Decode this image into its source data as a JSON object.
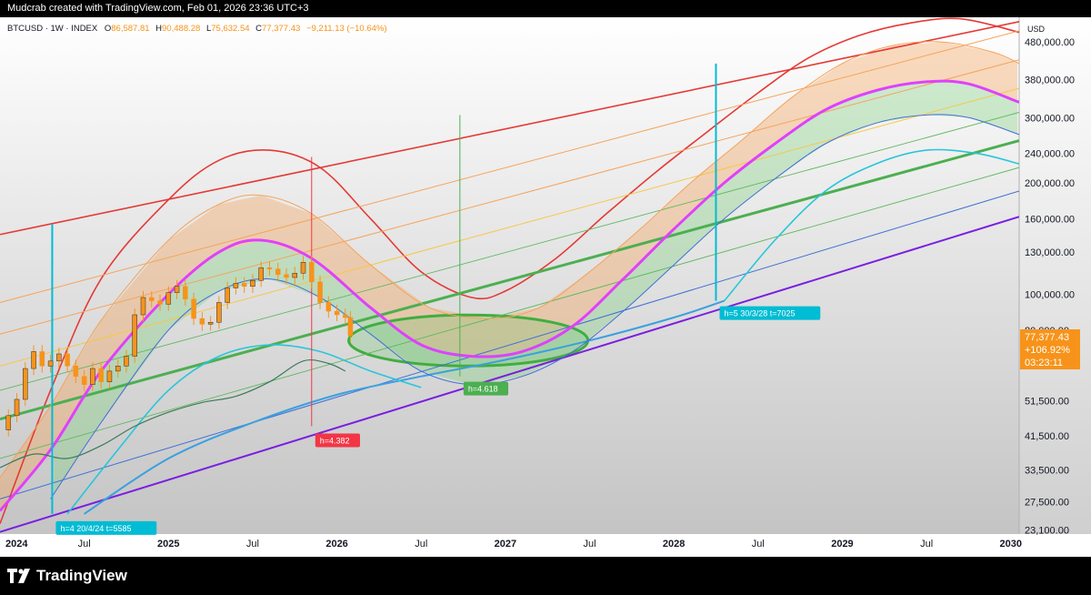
{
  "header": {
    "creator_line": "Mudcrab created with TradingView.com, Feb 01, 2026 23:36 UTC+3"
  },
  "legend": {
    "symbol": "BTCUSD · 1W · INDEX",
    "open_label": "O",
    "open": "86,587.81",
    "high_label": "H",
    "high": "90,488.28",
    "low_label": "L",
    "low": "75,632.54",
    "close_label": "C",
    "close": "77,377.43",
    "change": "−9,211.13 (−10.64%)"
  },
  "price_axis": {
    "currency": "USD",
    "ticks": [
      "480,000.00",
      "380,000.00",
      "300,000.00",
      "240,000.00",
      "200,000.00",
      "160,000.00",
      "130,000.00",
      "100,000.00",
      "80,000.00",
      "51,500.00",
      "41,500.00",
      "33,500.00",
      "27,500.00",
      "23,100.00"
    ]
  },
  "price_tag": {
    "price": "77,377.43",
    "change_pct": "+106.92%",
    "countdown": "03:23:11",
    "color": "#f7931a"
  },
  "time_axis": {
    "ticks": [
      "2024",
      "Jul",
      "2025",
      "Jul",
      "2026",
      "Jul",
      "2027",
      "Jul",
      "2028",
      "Jul",
      "2029",
      "Jul",
      "2030"
    ]
  },
  "annotations": [
    {
      "text": "h=4 20/4/24 t=5585",
      "color": "#00bcd4"
    },
    {
      "text": "h=4.382",
      "color": "#f23645"
    },
    {
      "text": "h=4.618",
      "color": "#4caf50"
    },
    {
      "text": "h=5 30/3/28 t=7025",
      "color": "#00bcd4"
    }
  ],
  "colors": {
    "red_curve": "#e53935",
    "orange_band": "#f5a35a",
    "magenta_curve": "#e040fb",
    "green_line": "#4caf50",
    "cyan_curve": "#26c6da",
    "blue_curve": "#3f6fd6",
    "purple_line": "#7b1fe0",
    "candle_up": "#f7931a",
    "grid_bg_top": "#ffffff",
    "grid_bg_bottom": "#c9c9c9"
  },
  "footer": {
    "brand": "TradingView",
    "logo_icon": "tradingview-logo-icon"
  },
  "chart_data": {
    "type": "line",
    "title": "",
    "xlabel": "",
    "ylabel": "USD",
    "scale": "log",
    "ylim": [
      22500,
      560000
    ],
    "xlim": [
      2024.0,
      2030.05
    ],
    "grid": false,
    "series": [
      {
        "key": "red_upper_line",
        "values": [
          [
            2024.0,
            145000
          ],
          [
            2030.05,
            545000
          ]
        ]
      },
      {
        "key": "red_wave",
        "values": [
          [
            2024.0,
            24000
          ],
          [
            2024.3,
            55000
          ],
          [
            2024.6,
            110000
          ],
          [
            2025.0,
            180000
          ],
          [
            2025.3,
            230000
          ],
          [
            2025.6,
            245000
          ],
          [
            2025.9,
            220000
          ],
          [
            2026.2,
            160000
          ],
          [
            2026.5,
            115000
          ],
          [
            2026.8,
            98000
          ],
          [
            2027.0,
            102000
          ],
          [
            2027.3,
            125000
          ],
          [
            2027.6,
            165000
          ],
          [
            2027.9,
            215000
          ],
          [
            2028.2,
            275000
          ],
          [
            2028.5,
            350000
          ],
          [
            2028.8,
            435000
          ],
          [
            2029.1,
            500000
          ],
          [
            2029.4,
            540000
          ],
          [
            2029.7,
            555000
          ],
          [
            2030.05,
            510000
          ]
        ]
      },
      {
        "key": "orange_line_1",
        "values": [
          [
            2024.0,
            95000
          ],
          [
            2030.05,
            515000
          ]
        ]
      },
      {
        "key": "orange_line_2",
        "values": [
          [
            2024.0,
            78000
          ],
          [
            2030.05,
            430000
          ]
        ]
      },
      {
        "key": "orange_line_3",
        "values": [
          [
            2024.0,
            64000
          ],
          [
            2030.05,
            360000
          ]
        ]
      },
      {
        "key": "green_line_1",
        "values": [
          [
            2024.0,
            55000
          ],
          [
            2030.05,
            310000
          ]
        ]
      },
      {
        "key": "green_main",
        "values": [
          [
            2024.0,
            46000
          ],
          [
            2030.05,
            260000
          ]
        ]
      },
      {
        "key": "green_line_2",
        "values": [
          [
            2024.0,
            36000
          ],
          [
            2030.05,
            220000
          ]
        ]
      },
      {
        "key": "blue_line",
        "values": [
          [
            2024.0,
            28000
          ],
          [
            2030.05,
            190000
          ]
        ]
      },
      {
        "key": "purple_line",
        "values": [
          [
            2024.0,
            22800
          ],
          [
            2030.05,
            162000
          ]
        ]
      },
      {
        "key": "cyan_base",
        "values": [
          [
            2024.5,
            25500
          ],
          [
            2025.0,
            36000
          ],
          [
            2025.5,
            45000
          ],
          [
            2026.0,
            53500
          ],
          [
            2026.5,
            60000
          ],
          [
            2027.0,
            66500
          ],
          [
            2027.5,
            75000
          ],
          [
            2028.0,
            86500
          ],
          [
            2028.3,
            96000
          ]
        ]
      },
      {
        "key": "orange_band_top",
        "values": [
          [
            2024.0,
            32000
          ],
          [
            2024.3,
            50000
          ],
          [
            2024.6,
            85000
          ],
          [
            2025.0,
            140000
          ],
          [
            2025.3,
            175000
          ],
          [
            2025.55,
            185000
          ],
          [
            2025.85,
            165000
          ],
          [
            2026.2,
            120000
          ],
          [
            2026.55,
            92000
          ],
          [
            2026.9,
            86000
          ],
          [
            2027.2,
            92000
          ],
          [
            2027.5,
            115000
          ],
          [
            2027.8,
            150000
          ],
          [
            2028.1,
            200000
          ],
          [
            2028.4,
            260000
          ],
          [
            2028.7,
            340000
          ],
          [
            2029.0,
            420000
          ],
          [
            2029.3,
            470000
          ],
          [
            2029.6,
            480000
          ],
          [
            2029.9,
            450000
          ],
          [
            2030.05,
            420000
          ]
        ]
      },
      {
        "key": "magenta_wave",
        "values": [
          [
            2024.0,
            26000
          ],
          [
            2024.3,
            38000
          ],
          [
            2024.6,
            62000
          ],
          [
            2025.0,
            100000
          ],
          [
            2025.3,
            130000
          ],
          [
            2025.55,
            140000
          ],
          [
            2025.85,
            125000
          ],
          [
            2026.2,
            92000
          ],
          [
            2026.5,
            73000
          ],
          [
            2026.8,
            68000
          ],
          [
            2027.1,
            70000
          ],
          [
            2027.4,
            82000
          ],
          [
            2027.7,
            110000
          ],
          [
            2028.0,
            150000
          ],
          [
            2028.3,
            200000
          ],
          [
            2028.6,
            255000
          ],
          [
            2028.9,
            315000
          ],
          [
            2029.2,
            355000
          ],
          [
            2029.5,
            375000
          ],
          [
            2029.75,
            370000
          ],
          [
            2030.05,
            330000
          ]
        ]
      },
      {
        "key": "blue_wave",
        "values": [
          [
            2024.3,
            28000
          ],
          [
            2024.6,
            45000
          ],
          [
            2025.0,
            80000
          ],
          [
            2025.3,
            102000
          ],
          [
            2025.6,
            110000
          ],
          [
            2025.9,
            98000
          ],
          [
            2026.2,
            78000
          ],
          [
            2026.5,
            62000
          ],
          [
            2026.8,
            57000
          ],
          [
            2027.1,
            60000
          ],
          [
            2027.4,
            70000
          ],
          [
            2027.7,
            90000
          ],
          [
            2028.0,
            120000
          ],
          [
            2028.3,
            160000
          ],
          [
            2028.6,
            205000
          ],
          [
            2028.9,
            255000
          ],
          [
            2029.2,
            290000
          ],
          [
            2029.5,
            305000
          ],
          [
            2029.75,
            300000
          ],
          [
            2030.05,
            270000
          ]
        ]
      },
      {
        "key": "cyan_wave_1",
        "values": [
          [
            2024.4,
            25500
          ],
          [
            2024.7,
            38000
          ],
          [
            2025.0,
            55000
          ],
          [
            2025.3,
            68000
          ],
          [
            2025.6,
            73000
          ],
          [
            2025.9,
            70000
          ],
          [
            2026.2,
            62000
          ],
          [
            2026.5,
            56000
          ]
        ]
      },
      {
        "key": "cyan_wave_2",
        "values": [
          [
            2028.3,
            96000
          ],
          [
            2028.6,
            140000
          ],
          [
            2028.9,
            190000
          ],
          [
            2029.2,
            225000
          ],
          [
            2029.5,
            245000
          ],
          [
            2029.8,
            240000
          ],
          [
            2030.05,
            225000
          ]
        ]
      },
      {
        "key": "green_ellipse",
        "center": [
          2026.78,
          75000
        ],
        "rx_years": 0.71,
        "ry_ratio": 1.32
      }
    ],
    "verticals": [
      {
        "x": 2024.31,
        "from": 25500,
        "to": 155000,
        "color": "#00bcd4"
      },
      {
        "x": 2025.85,
        "from": 44000,
        "to": 235000,
        "color": "#f23645"
      },
      {
        "x": 2026.73,
        "from": 60000,
        "to": 305000,
        "color": "#4caf50"
      },
      {
        "x": 2028.25,
        "from": 96000,
        "to": 420000,
        "color": "#00bcd4"
      }
    ],
    "candles_weekly_close_approx": [
      [
        2024.0,
        43000
      ],
      [
        2024.05,
        47000
      ],
      [
        2024.1,
        52000
      ],
      [
        2024.15,
        63000
      ],
      [
        2024.2,
        70000
      ],
      [
        2024.25,
        64000
      ],
      [
        2024.3,
        66000
      ],
      [
        2024.35,
        69000
      ],
      [
        2024.4,
        64000
      ],
      [
        2024.45,
        60000
      ],
      [
        2024.5,
        57000
      ],
      [
        2024.55,
        63000
      ],
      [
        2024.6,
        58000
      ],
      [
        2024.65,
        62000
      ],
      [
        2024.7,
        64000
      ],
      [
        2024.75,
        68000
      ],
      [
        2024.8,
        88000
      ],
      [
        2024.85,
        98000
      ],
      [
        2024.9,
        96000
      ],
      [
        2024.95,
        94000
      ],
      [
        2025.0,
        101000
      ],
      [
        2025.05,
        105000
      ],
      [
        2025.1,
        97000
      ],
      [
        2025.15,
        86000
      ],
      [
        2025.2,
        83000
      ],
      [
        2025.25,
        84000
      ],
      [
        2025.3,
        95000
      ],
      [
        2025.35,
        104000
      ],
      [
        2025.4,
        107000
      ],
      [
        2025.45,
        105000
      ],
      [
        2025.5,
        109000
      ],
      [
        2025.55,
        118000
      ],
      [
        2025.6,
        117000
      ],
      [
        2025.65,
        113000
      ],
      [
        2025.7,
        111000
      ],
      [
        2025.75,
        114000
      ],
      [
        2025.8,
        122000
      ],
      [
        2025.85,
        108000
      ],
      [
        2025.9,
        95000
      ],
      [
        2025.95,
        90000
      ],
      [
        2026.0,
        88000
      ],
      [
        2026.05,
        86500
      ],
      [
        2026.08,
        77377
      ]
    ],
    "oscillator_series_approx": [
      [
        2024.0,
        34000
      ],
      [
        2024.2,
        37000
      ],
      [
        2024.4,
        36000
      ],
      [
        2024.6,
        39000
      ],
      [
        2024.8,
        44000
      ],
      [
        2025.0,
        48000
      ],
      [
        2025.2,
        51000
      ],
      [
        2025.4,
        53000
      ],
      [
        2025.6,
        58000
      ],
      [
        2025.8,
        66000
      ],
      [
        2025.95,
        65000
      ],
      [
        2026.05,
        62000
      ]
    ]
  }
}
